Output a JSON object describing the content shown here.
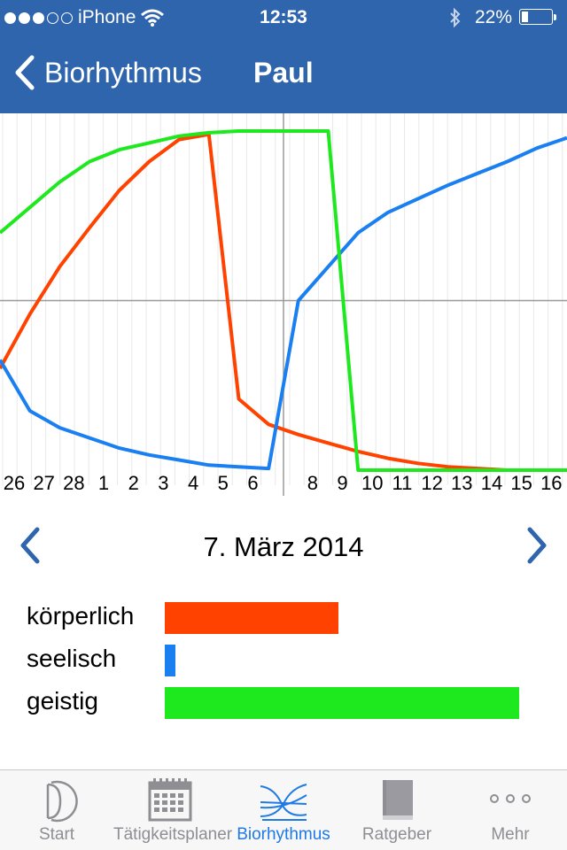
{
  "status_bar": {
    "carrier": "iPhone",
    "time": "12:53",
    "battery": "22%",
    "battery_level": 0.22,
    "signal_bars_filled": 3,
    "signal_bars_total": 5
  },
  "nav": {
    "back_label": "Biorhythmus",
    "title": "Paul"
  },
  "chart_data": {
    "type": "line",
    "x_tick_labels": [
      "26",
      "27",
      "28",
      "1",
      "2",
      "3",
      "4",
      "5",
      "6",
      "8",
      "9",
      "10",
      "11",
      "12",
      "13",
      "14",
      "15",
      "16"
    ],
    "x": [
      26,
      27,
      28,
      1,
      2,
      3,
      4,
      5,
      6,
      7,
      8,
      9,
      10,
      11,
      12,
      13,
      14,
      15,
      16,
      17
    ],
    "ylim": [
      -100,
      100
    ],
    "series": [
      {
        "color": "#ff4200",
        "values": [
          -40,
          -8,
          20,
          43,
          65,
          82,
          95,
          98,
          -58,
          -73,
          -79,
          -84,
          -89,
          -93,
          -96,
          -98,
          -99,
          -100,
          -100,
          -100
        ]
      },
      {
        "color": "#1a7ff0",
        "values": [
          -35,
          -65,
          -75,
          -81,
          -87,
          -91,
          -94,
          -97,
          -98,
          -99,
          0,
          20,
          40,
          52,
          60,
          68,
          75,
          82,
          90,
          96
        ]
      },
      {
        "color": "#1ee81e",
        "values": [
          40,
          55,
          70,
          82,
          89,
          93,
          97,
          99,
          100,
          100,
          100,
          100,
          -100,
          -100,
          -100,
          -100,
          -100,
          -100,
          -100,
          -100
        ]
      }
    ],
    "grid": true
  },
  "date_nav": {
    "date": "7. März 2014"
  },
  "values": [
    {
      "label": "körperlich",
      "color": "#ff4200",
      "value": 0.49
    },
    {
      "label": "seelisch",
      "color": "#1a7ff0",
      "value": 0.03
    },
    {
      "label": "geistig",
      "color": "#1ee81e",
      "value": 1.0
    }
  ],
  "tabs": [
    {
      "label": "Start",
      "icon": "moon-icon",
      "active": false
    },
    {
      "label": "Tätigkeitsplaner",
      "icon": "calendar-icon",
      "active": false
    },
    {
      "label": "Biorhythmus",
      "icon": "biorhythm-icon",
      "active": true
    },
    {
      "label": "Ratgeber",
      "icon": "book-icon",
      "active": false
    },
    {
      "label": "Mehr",
      "icon": "more-icon",
      "active": false
    }
  ]
}
